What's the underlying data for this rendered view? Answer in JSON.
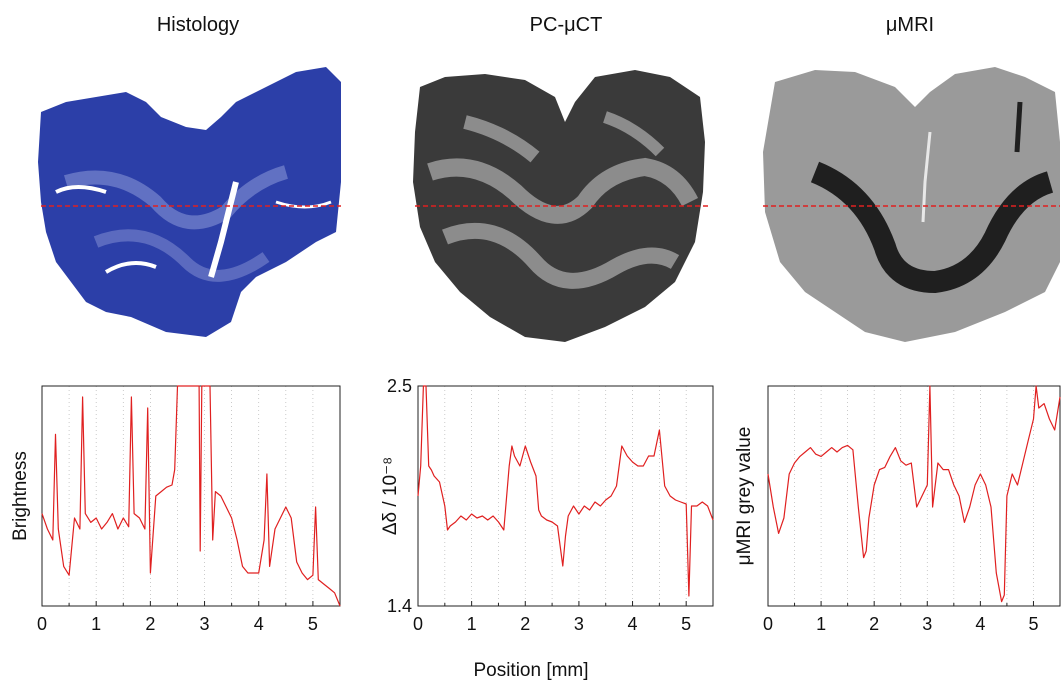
{
  "panels": {
    "histology_title": "Histology",
    "ct_title": "PC-μCT",
    "mri_title": "μMRI"
  },
  "xlabel": "Position [mm]",
  "colors": {
    "profile": "#e02020",
    "histology_fill": "#2c3fa8",
    "histology_light": "#6f7ec9",
    "ct_dark": "#3a3a3a",
    "ct_light": "#8c8c8c",
    "mri_dark": "#1f1f1f",
    "mri_light": "#9a9a9a",
    "dashed_line": "#e02020"
  },
  "chart_data": [
    {
      "type": "line",
      "panel": "Histology",
      "ylabel": "Brightness",
      "xlim": [
        0,
        5.5
      ],
      "xticks": [
        "0",
        "1",
        "2",
        "3",
        "4",
        "5"
      ],
      "yticks": [],
      "grid": "vertical dotted at 0.5 mm",
      "series": [
        {
          "x": [
            0.0,
            0.1,
            0.2,
            0.25,
            0.3,
            0.4,
            0.5,
            0.6,
            0.7,
            0.75,
            0.8,
            0.9,
            1.0,
            1.1,
            1.2,
            1.3,
            1.4,
            1.5,
            1.6,
            1.65,
            1.7,
            1.8,
            1.9,
            1.95,
            2.0,
            2.1,
            2.2,
            2.3,
            2.4,
            2.45,
            2.5,
            2.9,
            2.92,
            2.95,
            3.0,
            3.1,
            3.15,
            3.2,
            3.3,
            3.4,
            3.5,
            3.6,
            3.7,
            3.8,
            3.9,
            4.0,
            4.1,
            4.15,
            4.2,
            4.3,
            4.4,
            4.5,
            4.6,
            4.7,
            4.8,
            4.9,
            5.0,
            5.05,
            5.1,
            5.2,
            5.3,
            5.4,
            5.5
          ],
          "y": [
            0.42,
            0.35,
            0.3,
            0.78,
            0.35,
            0.18,
            0.14,
            0.4,
            0.35,
            0.95,
            0.42,
            0.38,
            0.4,
            0.35,
            0.38,
            0.42,
            0.35,
            0.4,
            0.36,
            0.95,
            0.42,
            0.4,
            0.35,
            0.9,
            0.15,
            0.5,
            0.52,
            0.54,
            0.55,
            0.62,
            1.0,
            1.0,
            0.25,
            1.0,
            1.0,
            1.0,
            0.3,
            0.52,
            0.5,
            0.45,
            0.4,
            0.3,
            0.18,
            0.15,
            0.15,
            0.15,
            0.3,
            0.6,
            0.18,
            0.35,
            0.4,
            0.45,
            0.4,
            0.2,
            0.15,
            0.12,
            0.14,
            0.45,
            0.12,
            0.1,
            0.08,
            0.06,
            0.0
          ]
        }
      ]
    },
    {
      "type": "line",
      "panel": "PC-μCT",
      "ylabel": "Δδ / 10⁻⁸",
      "xlim": [
        0,
        5.5
      ],
      "ylim": [
        1.4,
        2.5
      ],
      "xticks": [
        "0",
        "1",
        "2",
        "3",
        "4",
        "5"
      ],
      "yticks": [
        "1.4",
        "2.5"
      ],
      "grid": "vertical dotted at 0.5 mm",
      "series": [
        {
          "x": [
            0.0,
            0.05,
            0.1,
            0.15,
            0.2,
            0.25,
            0.3,
            0.4,
            0.5,
            0.55,
            0.6,
            0.7,
            0.8,
            0.9,
            1.0,
            1.1,
            1.2,
            1.3,
            1.4,
            1.5,
            1.6,
            1.7,
            1.75,
            1.8,
            1.9,
            2.0,
            2.1,
            2.2,
            2.25,
            2.3,
            2.4,
            2.5,
            2.6,
            2.7,
            2.75,
            2.8,
            2.9,
            3.0,
            3.1,
            3.2,
            3.3,
            3.4,
            3.5,
            3.6,
            3.7,
            3.8,
            3.9,
            4.0,
            4.1,
            4.2,
            4.3,
            4.4,
            4.5,
            4.6,
            4.7,
            4.8,
            4.9,
            5.0,
            5.05,
            5.1,
            5.2,
            5.3,
            5.4,
            5.5
          ],
          "y": [
            1.95,
            2.1,
            2.5,
            2.5,
            2.1,
            2.08,
            2.05,
            2.02,
            1.9,
            1.78,
            1.8,
            1.82,
            1.85,
            1.83,
            1.86,
            1.84,
            1.85,
            1.83,
            1.85,
            1.82,
            1.78,
            2.1,
            2.2,
            2.15,
            2.1,
            2.2,
            2.12,
            2.05,
            1.88,
            1.85,
            1.83,
            1.82,
            1.8,
            1.6,
            1.75,
            1.85,
            1.9,
            1.86,
            1.9,
            1.88,
            1.92,
            1.9,
            1.93,
            1.95,
            2.0,
            2.2,
            2.15,
            2.12,
            2.1,
            2.1,
            2.15,
            2.15,
            2.28,
            2.0,
            1.95,
            1.93,
            1.92,
            1.91,
            1.45,
            1.9,
            1.9,
            1.92,
            1.9,
            1.83
          ]
        }
      ]
    },
    {
      "type": "line",
      "panel": "μMRI",
      "ylabel": "μMRI grey value",
      "xlim": [
        0,
        5.5
      ],
      "xticks": [
        "0",
        "1",
        "2",
        "3",
        "4",
        "5"
      ],
      "yticks": [],
      "grid": "vertical dotted at 0.5 mm",
      "series": [
        {
          "x": [
            0.0,
            0.1,
            0.2,
            0.3,
            0.4,
            0.5,
            0.6,
            0.7,
            0.8,
            0.9,
            1.0,
            1.1,
            1.2,
            1.3,
            1.4,
            1.5,
            1.6,
            1.7,
            1.8,
            1.85,
            1.9,
            2.0,
            2.1,
            2.2,
            2.3,
            2.4,
            2.5,
            2.6,
            2.7,
            2.8,
            2.9,
            3.0,
            3.05,
            3.1,
            3.2,
            3.3,
            3.4,
            3.5,
            3.6,
            3.7,
            3.8,
            3.9,
            4.0,
            4.1,
            4.2,
            4.3,
            4.4,
            4.45,
            4.5,
            4.6,
            4.7,
            4.8,
            4.9,
            5.0,
            5.05,
            5.1,
            5.2,
            5.3,
            5.4,
            5.5
          ],
          "y": [
            0.6,
            0.45,
            0.33,
            0.4,
            0.6,
            0.65,
            0.68,
            0.7,
            0.72,
            0.69,
            0.68,
            0.7,
            0.72,
            0.7,
            0.72,
            0.73,
            0.71,
            0.45,
            0.22,
            0.25,
            0.4,
            0.55,
            0.62,
            0.63,
            0.68,
            0.72,
            0.66,
            0.64,
            0.65,
            0.45,
            0.5,
            0.55,
            1.0,
            0.45,
            0.65,
            0.62,
            0.62,
            0.55,
            0.5,
            0.38,
            0.45,
            0.55,
            0.6,
            0.55,
            0.45,
            0.15,
            0.02,
            0.05,
            0.5,
            0.6,
            0.55,
            0.65,
            0.75,
            0.85,
            1.0,
            0.9,
            0.92,
            0.85,
            0.8,
            0.95
          ]
        }
      ]
    }
  ]
}
